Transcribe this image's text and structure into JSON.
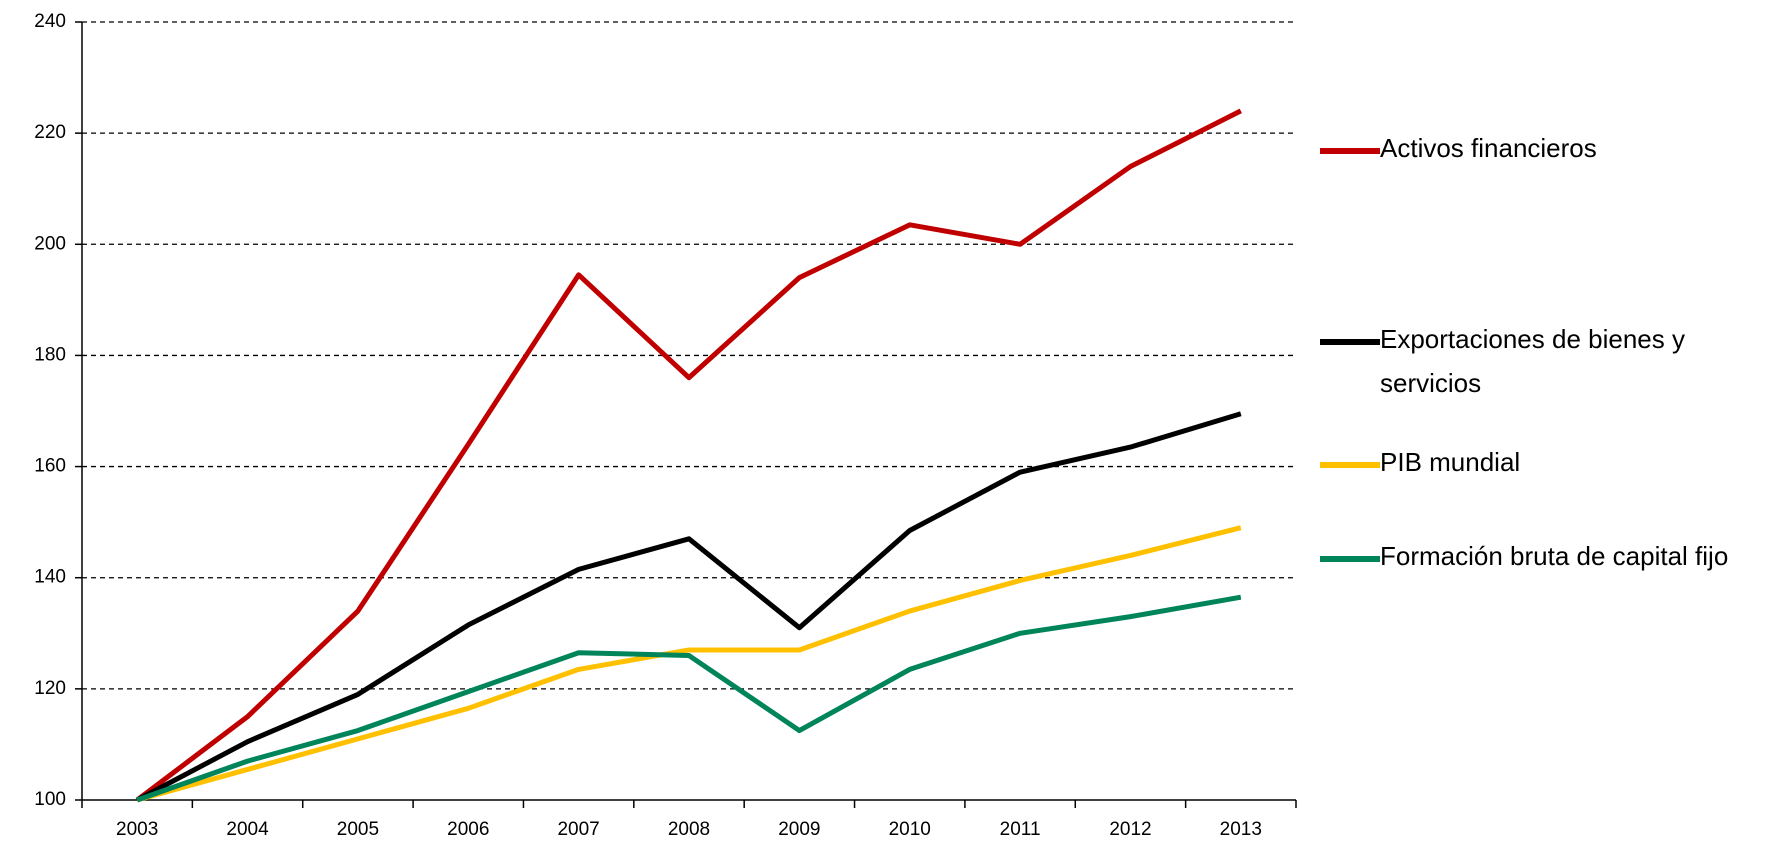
{
  "chart_data": {
    "type": "line",
    "categories": [
      "2003",
      "2004",
      "2005",
      "2006",
      "2007",
      "2008",
      "2009",
      "2010",
      "2011",
      "2012",
      "2013"
    ],
    "series": [
      {
        "name": "Activos financieros",
        "color": "#c00000",
        "values": [
          100,
          115,
          134,
          164,
          194.5,
          176,
          194,
          203.5,
          200,
          214,
          224
        ]
      },
      {
        "name": "Exportaciones de bienes y servicios",
        "color": "#000000",
        "values": [
          100,
          110.5,
          119,
          131.5,
          141.5,
          147,
          131,
          148.5,
          159,
          163.5,
          169.5
        ]
      },
      {
        "name": "PIB mundial",
        "color": "#ffc000",
        "values": [
          100,
          105.5,
          111,
          116.5,
          123.5,
          127,
          127,
          134,
          139.5,
          144,
          149
        ]
      },
      {
        "name": "Formación bruta de capital fijo",
        "color": "#00845a",
        "values": [
          100,
          107,
          112.5,
          119.5,
          126.5,
          126,
          112.5,
          123.5,
          130,
          133,
          136.5
        ]
      }
    ],
    "ylim": [
      100,
      240
    ],
    "yticks": [
      100,
      120,
      140,
      160,
      180,
      200,
      220,
      240
    ],
    "grid": true
  }
}
